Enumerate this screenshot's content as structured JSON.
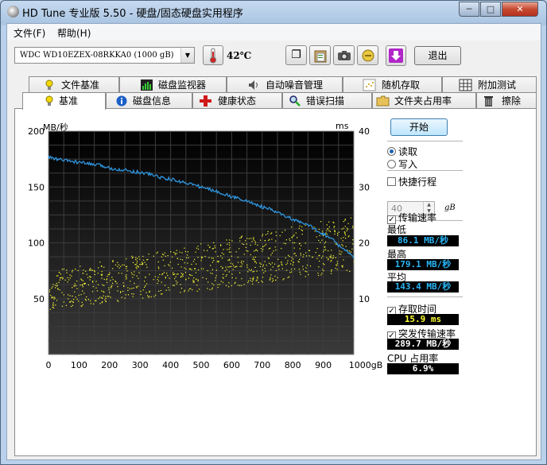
{
  "window": {
    "title": "HD Tune 专业版 5.50 - 硬盘/固态硬盘实用程序",
    "minimize_label": "─",
    "maximize_label": "□",
    "close_label": "✕"
  },
  "menu": [
    "文件(F)",
    "帮助(H)"
  ],
  "toolbar": {
    "drive": "WDC WD10EZEX-08RKKA0 (1000 gB)",
    "temperature": "42℃",
    "exit_label": "退出",
    "buttons": [
      {
        "name": "copy-info",
        "icon": "copy-icon",
        "glyph": "❐"
      },
      {
        "name": "copy-screenshot",
        "icon": "clipboard-icon",
        "glyph": "📋"
      },
      {
        "name": "screenshot",
        "icon": "camera-icon",
        "glyph": "📷"
      },
      {
        "name": "options",
        "icon": "wrench-icon",
        "glyph": "🔧"
      },
      {
        "name": "save",
        "icon": "download-arrow-icon",
        "glyph": "⇩"
      }
    ]
  },
  "tabs_top": [
    {
      "label": "文件基准",
      "icon": "bulb-icon"
    },
    {
      "label": "磁盘监视器",
      "icon": "bar-chart-icon"
    },
    {
      "label": "自动噪音管理",
      "icon": "speaker-icon"
    },
    {
      "label": "随机存取",
      "icon": "scatter-icon"
    },
    {
      "label": "附加测试",
      "icon": "grid-icon"
    }
  ],
  "tabs_bottom": [
    {
      "label": "基准",
      "icon": "bulb-icon",
      "active": true
    },
    {
      "label": "磁盘信息",
      "icon": "info-icon"
    },
    {
      "label": "健康状态",
      "icon": "plus-cross-icon"
    },
    {
      "label": "错误扫描",
      "icon": "magnifier-icon"
    },
    {
      "label": "文件夹占用率",
      "icon": "folder-icon"
    },
    {
      "label": "擦除",
      "icon": "trash-icon"
    }
  ],
  "controls": {
    "start_label": "开始",
    "read_label": "读取",
    "write_label": "写入",
    "mode": "read",
    "quick_label": "快捷行程",
    "quick_checked": false,
    "quick_value": "40",
    "quick_unit": "gB",
    "transfer_label": "传输速率",
    "transfer_checked": true,
    "min_label": "最低",
    "min_value": "86.1 MB/秒",
    "max_label": "最高",
    "max_value": "179.1 MB/秒",
    "avg_label": "平均",
    "avg_value": "143.4 MB/秒",
    "access_label": "存取时间",
    "access_checked": true,
    "access_value": "15.9 ms",
    "burst_label": "突发传输速率",
    "burst_checked": true,
    "burst_value": "289.7 MB/秒",
    "cpu_label": "CPU 占用率",
    "cpu_value": "6.9%"
  },
  "chart_data": {
    "type": "line",
    "ylabel_left": "MB/秒",
    "ylabel_right": "ms",
    "xunit": "gB",
    "x_ticks": [
      0,
      100,
      200,
      300,
      400,
      500,
      600,
      700,
      800,
      900,
      1000
    ],
    "y_left_ticks": [
      50,
      100,
      150,
      200
    ],
    "y_right_ticks": [
      10,
      20,
      30,
      40
    ],
    "xlim": [
      0,
      1000
    ],
    "ylim_left": [
      0,
      200
    ],
    "ylim_right": [
      0,
      40
    ],
    "grid": true,
    "transfer_color": "#2f9be8",
    "access_color": "#ffff33",
    "series": [
      {
        "kind": "transfer_rate",
        "x": [
          0,
          25,
          50,
          75,
          100,
          125,
          150,
          175,
          200,
          225,
          250,
          275,
          300,
          325,
          350,
          375,
          400,
          425,
          450,
          475,
          500,
          525,
          550,
          575,
          600,
          625,
          650,
          675,
          700,
          725,
          750,
          775,
          800,
          825,
          850,
          875,
          900,
          925,
          950,
          975,
          1000
        ],
        "values": [
          177,
          175,
          174,
          173,
          172,
          171,
          170,
          169,
          167,
          166,
          165,
          164,
          163,
          162,
          160,
          158,
          157,
          155,
          154,
          152,
          150,
          148,
          146,
          144,
          141,
          140,
          137,
          135,
          132,
          130,
          127,
          124,
          121,
          118,
          116,
          112,
          108,
          104,
          98,
          93,
          86
        ]
      }
    ],
    "access_time_band": {
      "start_ms": [
        8,
        15
      ],
      "end_ms": [
        15,
        25
      ],
      "count": 900
    }
  }
}
